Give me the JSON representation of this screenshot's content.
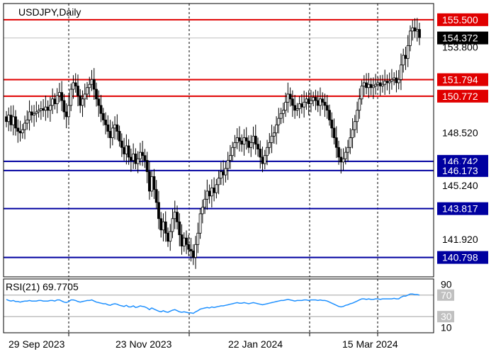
{
  "chart_data": {
    "type": "candlestick",
    "symbol_label": "USDJPY,Daily",
    "y_axis": {
      "min": 139.6,
      "max": 156.5,
      "ticks": [
        "155.500",
        "154.372",
        "153.800",
        "151.794",
        "150.772",
        "148.520",
        "146.742",
        "146.173",
        "145.240",
        "143.817",
        "141.920",
        "140.798"
      ]
    },
    "current_price": {
      "value": 154.372,
      "label": "154.372"
    },
    "x_tick_labels": [
      "29 Sep 2023",
      "23 Nov 2023",
      "22 Jan 2024",
      "15 Mar 2024"
    ],
    "levels": [
      {
        "value": 155.5,
        "label": "155.500",
        "color": "#e00000"
      },
      {
        "value": 151.794,
        "label": "151.794",
        "color": "#e00000"
      },
      {
        "value": 150.772,
        "label": "150.772",
        "color": "#e00000"
      },
      {
        "value": 146.742,
        "label": "146.742",
        "color": "#0000a0"
      },
      {
        "value": 146.173,
        "label": "146.173",
        "color": "#0000a0"
      },
      {
        "value": 143.817,
        "label": "143.817",
        "color": "#0000a0"
      },
      {
        "value": 140.798,
        "label": "140.798",
        "color": "#0000a0"
      }
    ],
    "closes": [
      149.2,
      149.6,
      149.0,
      149.5,
      148.8,
      148.6,
      148.5,
      148.7,
      149.1,
      149.3,
      149.8,
      149.6,
      149.7,
      149.8,
      149.9,
      150.0,
      149.9,
      150.1,
      149.9,
      150.2,
      150.6,
      150.3,
      150.8,
      151.0,
      150.5,
      149.8,
      149.5,
      150.2,
      151.2,
      151.6,
      151.4,
      150.8,
      150.2,
      150.6,
      150.9,
      151.3,
      151.5,
      151.8,
      151.2,
      150.6,
      150.2,
      149.7,
      149.3,
      149.0,
      148.6,
      148.2,
      148.8,
      149.0,
      148.6,
      148.0,
      147.6,
      147.2,
      147.7,
      147.0,
      146.8,
      147.2,
      146.6,
      146.9,
      147.3,
      147.1,
      146.8,
      146.1,
      144.9,
      145.8,
      145.0,
      144.2,
      143.2,
      142.5,
      143.0,
      142.3,
      141.8,
      142.4,
      143.2,
      143.6,
      143.0,
      142.2,
      141.5,
      142.0,
      141.6,
      141.3,
      141.2,
      140.8,
      141.6,
      142.3,
      143.5,
      143.9,
      144.4,
      144.9,
      144.6,
      145.1,
      144.8,
      145.3,
      145.7,
      146.1,
      145.9,
      146.3,
      146.8,
      147.1,
      147.6,
      147.9,
      148.2,
      148.0,
      147.8,
      148.2,
      148.0,
      147.6,
      147.9,
      148.3,
      147.8,
      147.5,
      147.0,
      146.6,
      147.1,
      147.6,
      147.9,
      148.3,
      148.5,
      149.0,
      149.4,
      149.7,
      149.9,
      150.4,
      150.9,
      150.6,
      150.2,
      149.9,
      150.0,
      150.3,
      150.1,
      150.4,
      150.6,
      150.3,
      150.5,
      150.7,
      150.5,
      150.2,
      150.6,
      150.4,
      150.2,
      149.9,
      149.3,
      148.8,
      148.2,
      147.6,
      147.0,
      146.7,
      146.9,
      147.3,
      147.6,
      148.2,
      148.7,
      149.2,
      149.9,
      150.6,
      151.4,
      151.6,
      151.3,
      151.5,
      151.3,
      151.4,
      151.5,
      151.6,
      151.4,
      151.5,
      151.7,
      151.6,
      151.7,
      151.8,
      151.9,
      151.6,
      151.8,
      152.7,
      153.3,
      153.1,
      153.9,
      154.8,
      155.0,
      154.8,
      154.9,
      154.4
    ],
    "rsi": {
      "label": "RSI(21) 69.7705",
      "period": 21,
      "last_value": 69.7705,
      "range": [
        0,
        100
      ],
      "levels": [
        70,
        30
      ],
      "axis_ticks": [
        "90",
        "70",
        "30",
        "10"
      ],
      "color": "#1e90ff",
      "values": [
        62,
        60,
        59,
        60,
        58,
        58,
        57,
        58,
        59,
        59,
        60,
        59,
        59,
        59,
        60,
        60,
        59,
        59,
        59,
        60,
        60,
        59,
        61,
        61,
        59,
        57,
        56,
        58,
        61,
        61,
        60,
        58,
        57,
        58,
        59,
        60,
        60,
        61,
        59,
        57,
        56,
        55,
        54,
        54,
        52,
        51,
        53,
        54,
        53,
        51,
        50,
        49,
        51,
        48,
        48,
        50,
        47,
        48,
        50,
        49,
        48,
        46,
        43,
        46,
        44,
        42,
        40,
        39,
        41,
        39,
        38,
        40,
        42,
        43,
        41,
        39,
        38,
        39,
        38,
        37,
        37,
        36,
        39,
        41,
        44,
        45,
        46,
        47,
        46,
        48,
        47,
        48,
        49,
        50,
        50,
        51,
        52,
        53,
        54,
        55,
        56,
        55,
        55,
        56,
        55,
        54,
        55,
        56,
        55,
        54,
        53,
        52,
        53,
        54,
        55,
        56,
        57,
        58,
        59,
        60,
        60,
        61,
        62,
        61,
        60,
        59,
        60,
        60,
        60,
        61,
        61,
        60,
        61,
        61,
        61,
        60,
        61,
        60,
        60,
        59,
        57,
        55,
        53,
        51,
        49,
        48,
        49,
        51,
        52,
        54,
        55,
        57,
        59,
        61,
        63,
        63,
        62,
        63,
        62,
        62,
        63,
        63,
        62,
        63,
        63,
        63,
        63,
        63,
        64,
        63,
        63,
        66,
        68,
        68,
        70,
        72,
        72,
        71,
        71,
        70
      ]
    }
  }
}
